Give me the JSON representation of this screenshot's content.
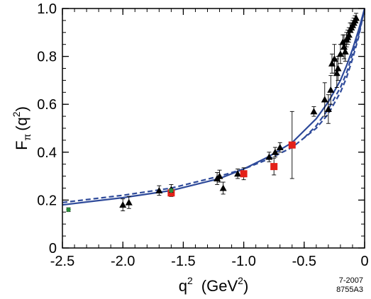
{
  "chart_data": {
    "type": "scatter",
    "title": "",
    "xlabel": {
      "main": "q",
      "sup": "2",
      "unit_prefix": "(GeV",
      "unit_sup": "2",
      "unit_suffix": ")"
    },
    "ylabel": {
      "main": "F",
      "sub": "π",
      "paren_open": "(q",
      "sup": "2",
      "paren_close": ")"
    },
    "xlim": [
      -2.5,
      0
    ],
    "ylim": [
      0,
      1.0
    ],
    "xticks": [
      -2.5,
      -2.0,
      -1.5,
      -1.0,
      -0.5,
      0
    ],
    "xtick_labels": [
      "-2.5",
      "-2.0",
      "-1.5",
      "-1.0",
      "-0.5",
      "0"
    ],
    "yticks": [
      0,
      0.2,
      0.4,
      0.6,
      0.8,
      1.0
    ],
    "ytick_labels": [
      "0",
      "0.2",
      "0.4",
      "0.6",
      "0.8",
      "1.0"
    ],
    "grid": false,
    "legend": "none",
    "annotations": [
      "7-2007",
      "8755A3"
    ],
    "series": [
      {
        "marker": "triangle",
        "color": "#000000",
        "points": [
          {
            "x": -1.95,
            "y": 0.19,
            "err": 0.025
          },
          {
            "x": -2.0,
            "y": 0.18,
            "err": 0.025
          },
          {
            "x": -1.7,
            "y": 0.24,
            "err": 0.02
          },
          {
            "x": -1.6,
            "y": 0.245,
            "err": 0.02
          },
          {
            "x": -1.22,
            "y": 0.29,
            "err": 0.025
          },
          {
            "x": -1.2,
            "y": 0.3,
            "err": 0.025
          },
          {
            "x": -1.17,
            "y": 0.25,
            "err": 0.025
          },
          {
            "x": -1.05,
            "y": 0.31,
            "err": 0.02
          },
          {
            "x": -0.79,
            "y": 0.38,
            "err": 0.02
          },
          {
            "x": -0.74,
            "y": 0.4,
            "err": 0.02
          },
          {
            "x": -0.7,
            "y": 0.42,
            "err": 0.02
          },
          {
            "x": -0.42,
            "y": 0.57,
            "err": 0.02
          },
          {
            "x": -0.33,
            "y": 0.62,
            "err": 0.07
          },
          {
            "x": -0.3,
            "y": 0.58,
            "err": 0.06
          },
          {
            "x": -0.28,
            "y": 0.66,
            "err": 0.06
          },
          {
            "x": -0.27,
            "y": 0.77,
            "err": 0.04
          },
          {
            "x": -0.25,
            "y": 0.79,
            "err": 0.06
          },
          {
            "x": -0.23,
            "y": 0.73,
            "err": 0.06
          },
          {
            "x": -0.22,
            "y": 0.75,
            "err": 0.05
          },
          {
            "x": -0.2,
            "y": 0.81,
            "err": 0.04
          },
          {
            "x": -0.18,
            "y": 0.86,
            "err": 0.03
          },
          {
            "x": -0.17,
            "y": 0.84,
            "err": 0.05
          },
          {
            "x": -0.16,
            "y": 0.82,
            "err": 0.04
          },
          {
            "x": -0.15,
            "y": 0.87,
            "err": 0.03
          },
          {
            "x": -0.14,
            "y": 0.88,
            "err": 0.03
          },
          {
            "x": -0.13,
            "y": 0.89,
            "err": 0.03
          },
          {
            "x": -0.12,
            "y": 0.91,
            "err": 0.03
          },
          {
            "x": -0.11,
            "y": 0.92,
            "err": 0.02
          },
          {
            "x": -0.1,
            "y": 0.93,
            "err": 0.02
          },
          {
            "x": -0.09,
            "y": 0.94,
            "err": 0.02
          },
          {
            "x": -0.08,
            "y": 0.95,
            "err": 0.02
          },
          {
            "x": -0.07,
            "y": 0.96,
            "err": 0.02
          }
        ]
      },
      {
        "marker": "square",
        "color": "#e32119",
        "points": [
          {
            "x": -1.6,
            "y": 0.23,
            "err": 0.015
          },
          {
            "x": -1.0,
            "y": 0.31,
            "err": 0.025
          },
          {
            "x": -0.75,
            "y": 0.34,
            "err": 0.035
          },
          {
            "x": -0.6,
            "y": 0.43,
            "err": 0.14
          }
        ]
      },
      {
        "marker": "circle",
        "color": "#2a8a3a",
        "points": [
          {
            "x": -2.45,
            "y": 0.16,
            "err": 0.008
          },
          {
            "x": -1.6,
            "y": 0.24,
            "err": 0.008
          }
        ]
      },
      {
        "type": "line",
        "style": "solid",
        "color": "#2e4a9a",
        "points": [
          {
            "x": -2.5,
            "y": 0.18
          },
          {
            "x": -2.0,
            "y": 0.21
          },
          {
            "x": -1.6,
            "y": 0.24
          },
          {
            "x": -1.2,
            "y": 0.29
          },
          {
            "x": -1.0,
            "y": 0.33
          },
          {
            "x": -0.8,
            "y": 0.38
          },
          {
            "x": -0.6,
            "y": 0.44
          },
          {
            "x": -0.4,
            "y": 0.54
          },
          {
            "x": -0.3,
            "y": 0.61
          },
          {
            "x": -0.2,
            "y": 0.7
          },
          {
            "x": -0.15,
            "y": 0.76
          },
          {
            "x": -0.1,
            "y": 0.83
          },
          {
            "x": -0.05,
            "y": 0.91
          },
          {
            "x": 0,
            "y": 1.0
          }
        ]
      },
      {
        "type": "line",
        "style": "dashed",
        "color": "#2e4a9a",
        "points": [
          {
            "x": -2.5,
            "y": 0.19
          },
          {
            "x": -2.0,
            "y": 0.22
          },
          {
            "x": -1.6,
            "y": 0.25
          },
          {
            "x": -1.2,
            "y": 0.3
          },
          {
            "x": -1.0,
            "y": 0.33
          },
          {
            "x": -0.8,
            "y": 0.37
          },
          {
            "x": -0.6,
            "y": 0.42
          },
          {
            "x": -0.4,
            "y": 0.5
          },
          {
            "x": -0.3,
            "y": 0.56
          },
          {
            "x": -0.2,
            "y": 0.65
          },
          {
            "x": -0.15,
            "y": 0.71
          },
          {
            "x": -0.1,
            "y": 0.79
          },
          {
            "x": -0.05,
            "y": 0.88
          },
          {
            "x": 0,
            "y": 1.0
          }
        ]
      },
      {
        "type": "line",
        "style": "dashed",
        "color": "#2e4a9a",
        "points": [
          {
            "x": -0.5,
            "y": 0.46
          },
          {
            "x": -0.4,
            "y": 0.51
          },
          {
            "x": -0.3,
            "y": 0.58
          },
          {
            "x": -0.2,
            "y": 0.67
          },
          {
            "x": -0.15,
            "y": 0.73
          },
          {
            "x": -0.1,
            "y": 0.81
          },
          {
            "x": -0.05,
            "y": 0.89
          },
          {
            "x": 0,
            "y": 1.0
          }
        ]
      }
    ]
  }
}
